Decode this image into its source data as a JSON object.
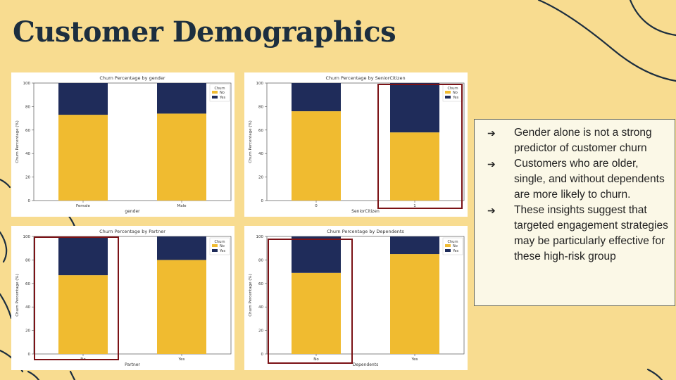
{
  "slide": {
    "title": "Customer Demographics",
    "bullets": [
      "Gender alone is not a strong predictor of customer churn",
      "Customers who are older, single, and without dependents are more likely to churn.",
      "These insights suggest that targeted engagement strategies may be particularly effective for these high-risk group"
    ],
    "bullet_icon": "arrow-right-icon",
    "colors": {
      "background": "#f8dc90",
      "no": "#f0bb30",
      "yes": "#1f2c5a",
      "highlight": "#7b1216",
      "title": "#1c2e3f"
    }
  },
  "chart_data": [
    {
      "type": "bar",
      "stacked": true,
      "title": "Churn Percentage by gender",
      "xlabel": "gender",
      "ylabel": "Churn Percentage (%)",
      "categories": [
        "Female",
        "Male"
      ],
      "series": [
        {
          "name": "No",
          "values": [
            73,
            74
          ]
        },
        {
          "name": "Yes",
          "values": [
            27,
            26
          ]
        }
      ],
      "ylim": [
        0,
        100
      ],
      "yticks": [
        0,
        20,
        40,
        60,
        80,
        100
      ],
      "legend_title": "Churn",
      "legend_position": "top-right",
      "highlight_category": null
    },
    {
      "type": "bar",
      "stacked": true,
      "title": "Churn Percentage by SeniorCitizen",
      "xlabel": "SeniorCitizen",
      "ylabel": "Churn Percentage (%)",
      "categories": [
        "0",
        "1"
      ],
      "series": [
        {
          "name": "No",
          "values": [
            76,
            58
          ]
        },
        {
          "name": "Yes",
          "values": [
            24,
            42
          ]
        }
      ],
      "ylim": [
        0,
        100
      ],
      "yticks": [
        0,
        20,
        40,
        60,
        80,
        100
      ],
      "legend_title": "Churn",
      "legend_position": "top-right",
      "highlight_category": 1
    },
    {
      "type": "bar",
      "stacked": true,
      "title": "Churn Percentage by Partner",
      "xlabel": "Partner",
      "ylabel": "Churn Percentage (%)",
      "categories": [
        "No",
        "Yes"
      ],
      "series": [
        {
          "name": "No",
          "values": [
            67,
            80
          ]
        },
        {
          "name": "Yes",
          "values": [
            33,
            20
          ]
        }
      ],
      "ylim": [
        0,
        100
      ],
      "yticks": [
        0,
        20,
        40,
        60,
        80,
        100
      ],
      "legend_title": "Churn",
      "legend_position": "top-right",
      "highlight_category": 0
    },
    {
      "type": "bar",
      "stacked": true,
      "title": "Churn Percentage by Dependents",
      "xlabel": "Dependents",
      "ylabel": "Churn Percentage (%)",
      "categories": [
        "No",
        "Yes"
      ],
      "series": [
        {
          "name": "No",
          "values": [
            69,
            85
          ]
        },
        {
          "name": "Yes",
          "values": [
            31,
            15
          ]
        }
      ],
      "ylim": [
        0,
        100
      ],
      "yticks": [
        0,
        20,
        40,
        60,
        80,
        100
      ],
      "legend_title": "Churn",
      "legend_position": "top-right",
      "highlight_category": 0
    }
  ]
}
